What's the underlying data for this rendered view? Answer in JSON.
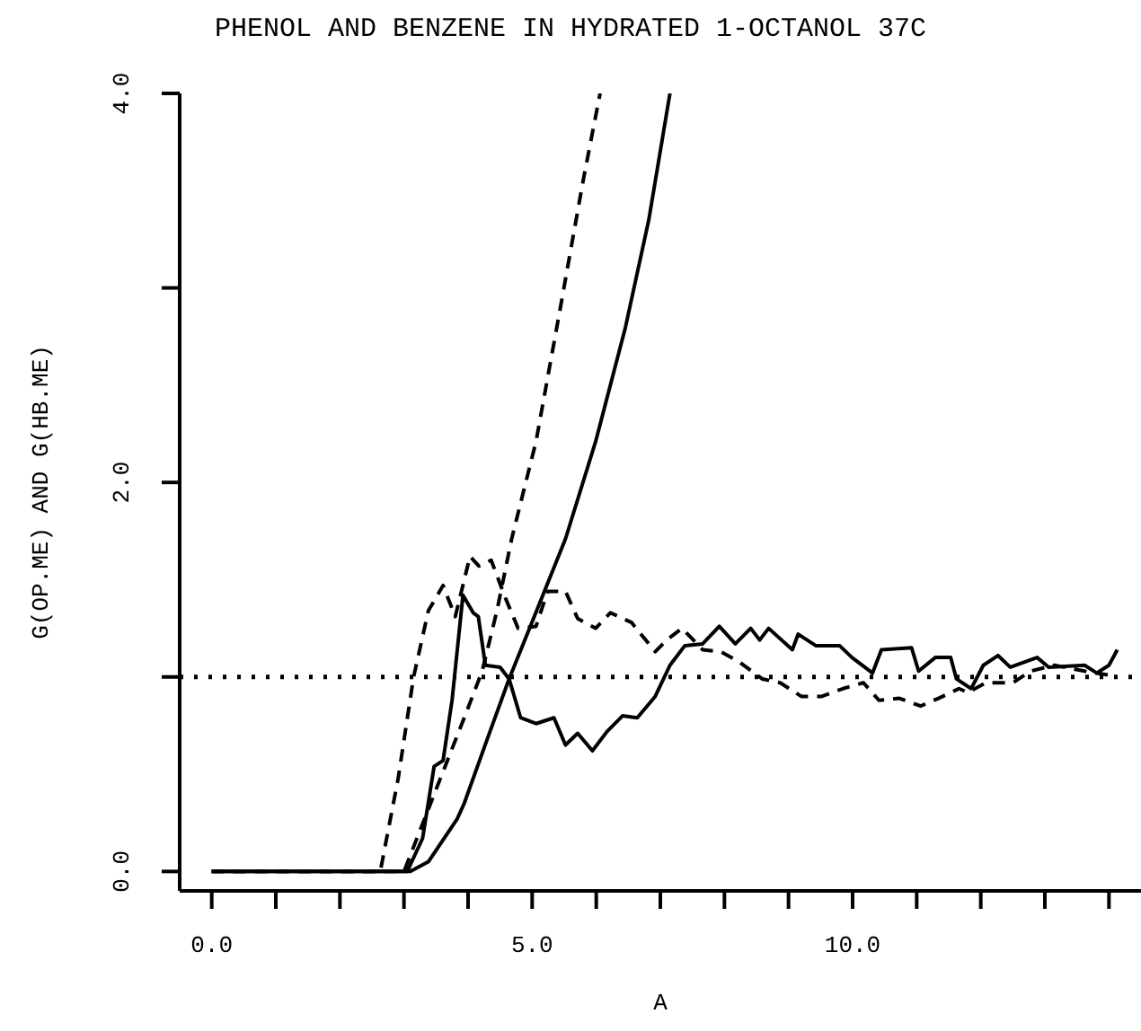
{
  "chart_data": {
    "type": "line",
    "title": "PHENOL AND BENZENE IN HYDRATED 1-OCTANOL 37C",
    "xlabel": "A",
    "ylabel": "G(OP.ME) AND G(HB.ME)",
    "xlim": [
      -0.5,
      14.5
    ],
    "ylim": [
      -0.1,
      4.0
    ],
    "xticks": [
      {
        "value": 0,
        "label": "0.0"
      },
      {
        "value": 1,
        "label": null
      },
      {
        "value": 2,
        "label": null
      },
      {
        "value": 3,
        "label": null
      },
      {
        "value": 4,
        "label": null
      },
      {
        "value": 5,
        "label": "5.0"
      },
      {
        "value": 6,
        "label": null
      },
      {
        "value": 7,
        "label": null
      },
      {
        "value": 8,
        "label": null
      },
      {
        "value": 9,
        "label": null
      },
      {
        "value": 10,
        "label": "10.0"
      },
      {
        "value": 11,
        "label": null
      },
      {
        "value": 12,
        "label": null
      },
      {
        "value": 13,
        "label": null
      },
      {
        "value": 14,
        "label": null
      }
    ],
    "yticks": [
      {
        "value": 0,
        "label": "0.0"
      },
      {
        "value": 1,
        "label": null
      },
      {
        "value": 2,
        "label": "2.0"
      },
      {
        "value": 3,
        "label": null
      },
      {
        "value": 4,
        "label": "4.0"
      }
    ],
    "grid": false,
    "legend": false,
    "marker": "none",
    "ref_lines": [
      {
        "axis": "y",
        "value": 1,
        "color": "#000000",
        "line_style": "dotted"
      }
    ],
    "series": [
      {
        "color": "#000000",
        "line_style": "solid",
        "x": [
          0,
          3.05,
          3.29,
          3.47,
          3.61,
          3.75,
          3.92,
          4.08,
          4.16,
          4.27,
          4.5,
          4.64,
          4.82,
          5.06,
          5.34,
          5.52,
          5.71,
          5.94,
          6.17,
          6.41,
          6.64,
          6.92,
          7.15,
          7.38,
          7.66,
          7.92,
          8.17,
          8.41,
          8.55,
          8.69,
          9.06,
          9.15,
          9.43,
          9.8,
          9.99,
          10.31,
          10.45,
          10.92,
          11.03,
          11.29,
          11.53,
          11.62,
          11.85,
          12.04,
          12.27,
          12.46,
          12.88,
          13.06,
          13.62,
          13.81,
          14.0,
          14.13
        ],
        "values": [
          0,
          0,
          0.17,
          0.54,
          0.57,
          0.88,
          1.42,
          1.33,
          1.31,
          1.06,
          1.05,
          0.99,
          0.79,
          0.76,
          0.79,
          0.65,
          0.71,
          0.62,
          0.72,
          0.8,
          0.79,
          0.9,
          1.06,
          1.16,
          1.17,
          1.26,
          1.17,
          1.25,
          1.19,
          1.25,
          1.14,
          1.22,
          1.16,
          1.16,
          1.1,
          1.02,
          1.14,
          1.15,
          1.03,
          1.1,
          1.1,
          0.99,
          0.94,
          1.06,
          1.11,
          1.05,
          1.1,
          1.05,
          1.06,
          1.02,
          1.06,
          1.14
        ]
      },
      {
        "color": "#000000",
        "line_style": "dashed",
        "x": [
          0,
          2.63,
          2.91,
          3.15,
          3.38,
          3.61,
          3.8,
          4.03,
          4.17,
          4.36,
          4.59,
          4.78,
          5.06,
          5.24,
          5.52,
          5.71,
          5.99,
          6.22,
          6.55,
          6.92,
          7.1,
          7.34,
          7.66,
          7.94,
          8.22,
          8.59,
          8.87,
          9.2,
          9.52,
          9.85,
          10.17,
          10.41,
          10.73,
          11.06,
          11.34,
          11.66,
          11.8,
          12.08,
          12.5,
          12.78,
          13.15,
          13.62,
          13.99
        ],
        "values": [
          0,
          0,
          0.48,
          1.0,
          1.34,
          1.47,
          1.31,
          1.62,
          1.57,
          1.6,
          1.4,
          1.25,
          1.26,
          1.44,
          1.44,
          1.3,
          1.25,
          1.33,
          1.28,
          1.13,
          1.19,
          1.25,
          1.14,
          1.13,
          1.08,
          0.99,
          0.97,
          0.9,
          0.9,
          0.94,
          0.97,
          0.88,
          0.89,
          0.85,
          0.89,
          0.94,
          0.92,
          0.97,
          0.97,
          1.03,
          1.06,
          1.03,
          1.01
        ]
      },
      {
        "color": "#000000",
        "line_style": "solid",
        "x": [
          0,
          3.1,
          3.38,
          3.83,
          3.94,
          4.31,
          4.64,
          4.96,
          5.24,
          5.52,
          5.99,
          6.45,
          6.82,
          7.15
        ],
        "values": [
          0,
          0,
          0.05,
          0.27,
          0.35,
          0.69,
          0.99,
          1.25,
          1.48,
          1.71,
          2.21,
          2.79,
          3.35,
          4.0
        ]
      },
      {
        "color": "#000000",
        "line_style": "dashed",
        "x": [
          0,
          3.0,
          3.57,
          3.94,
          4.22,
          4.45,
          4.68,
          5.06,
          5.43,
          5.8,
          6.06
        ],
        "values": [
          0,
          0,
          0.48,
          0.79,
          1.03,
          1.34,
          1.71,
          2.21,
          2.88,
          3.56,
          4.0
        ]
      }
    ]
  }
}
